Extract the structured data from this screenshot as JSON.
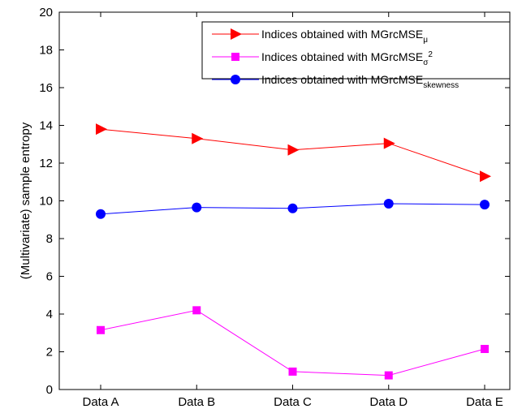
{
  "chart_data": {
    "type": "line",
    "categories": [
      "Data  A",
      "Data  B",
      "Data  C",
      "Data  D",
      "Data  E"
    ],
    "ylabel": "(Multivariate) sample entropy",
    "xlabel": "",
    "title": "",
    "ylim": [
      0,
      20
    ],
    "yticks": [
      "0",
      "2",
      "4",
      "6",
      "8",
      "10",
      "12",
      "14",
      "16",
      "18",
      "20"
    ],
    "grid": false,
    "legend_position": "top-right",
    "series": [
      {
        "name": "Indices obtained with MGrcMSE",
        "name_subscript": "μ",
        "name_superscript": "",
        "color": "#ff0000",
        "marker": "triangle-right",
        "values": [
          13.8,
          13.3,
          12.7,
          13.05,
          11.3
        ]
      },
      {
        "name": "Indices obtained with MGrcMSE",
        "name_subscript": "σ",
        "name_superscript": "2",
        "color": "#ff00ff",
        "marker": "square",
        "values": [
          3.15,
          4.2,
          0.95,
          0.75,
          2.15
        ]
      },
      {
        "name": "Indices obtained with MGrcMSE",
        "name_subscript": "skewness",
        "name_superscript": "",
        "color": "#0000ff",
        "marker": "circle",
        "values": [
          9.3,
          9.65,
          9.6,
          9.85,
          9.8
        ]
      }
    ]
  }
}
